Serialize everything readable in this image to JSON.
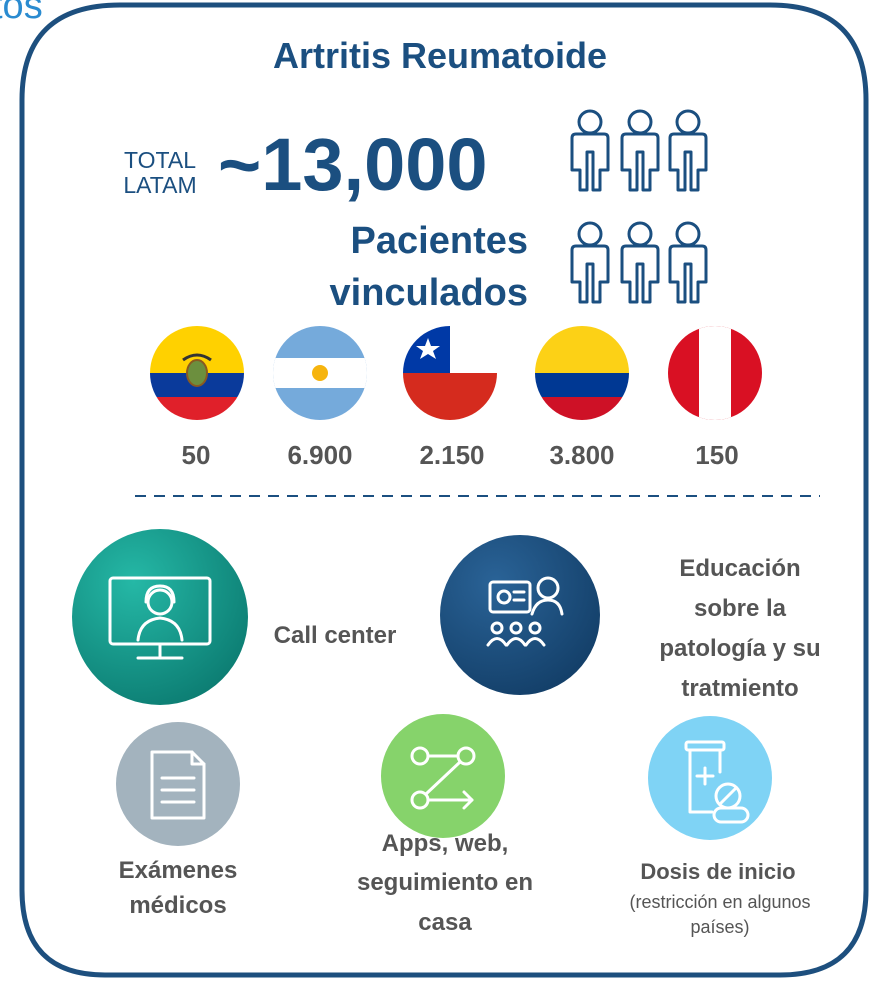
{
  "header_fragment": "tos",
  "title": "Artritis Reumatoide",
  "total": {
    "label_lines": [
      "TOTAL",
      "LATAM"
    ],
    "value": "~13,000",
    "caption_lines": [
      "Pacientes",
      "vinculados"
    ]
  },
  "countries": [
    "50",
    "6.900",
    "2.150",
    "3.800",
    "150"
  ],
  "services": [
    {
      "lines": [
        "Call center"
      ]
    },
    {
      "lines": [
        "Educación",
        "sobre la",
        "patología y su",
        "tratmiento"
      ]
    },
    {
      "lines": [
        "Exámenes",
        "médicos"
      ]
    },
    {
      "lines": [
        "Apps, web,",
        "seguimiento en",
        "casa"
      ]
    },
    {
      "lines": [
        "Dosis de inicio"
      ],
      "note_lines": [
        "(restricción en algunos",
        "países)"
      ]
    }
  ]
}
